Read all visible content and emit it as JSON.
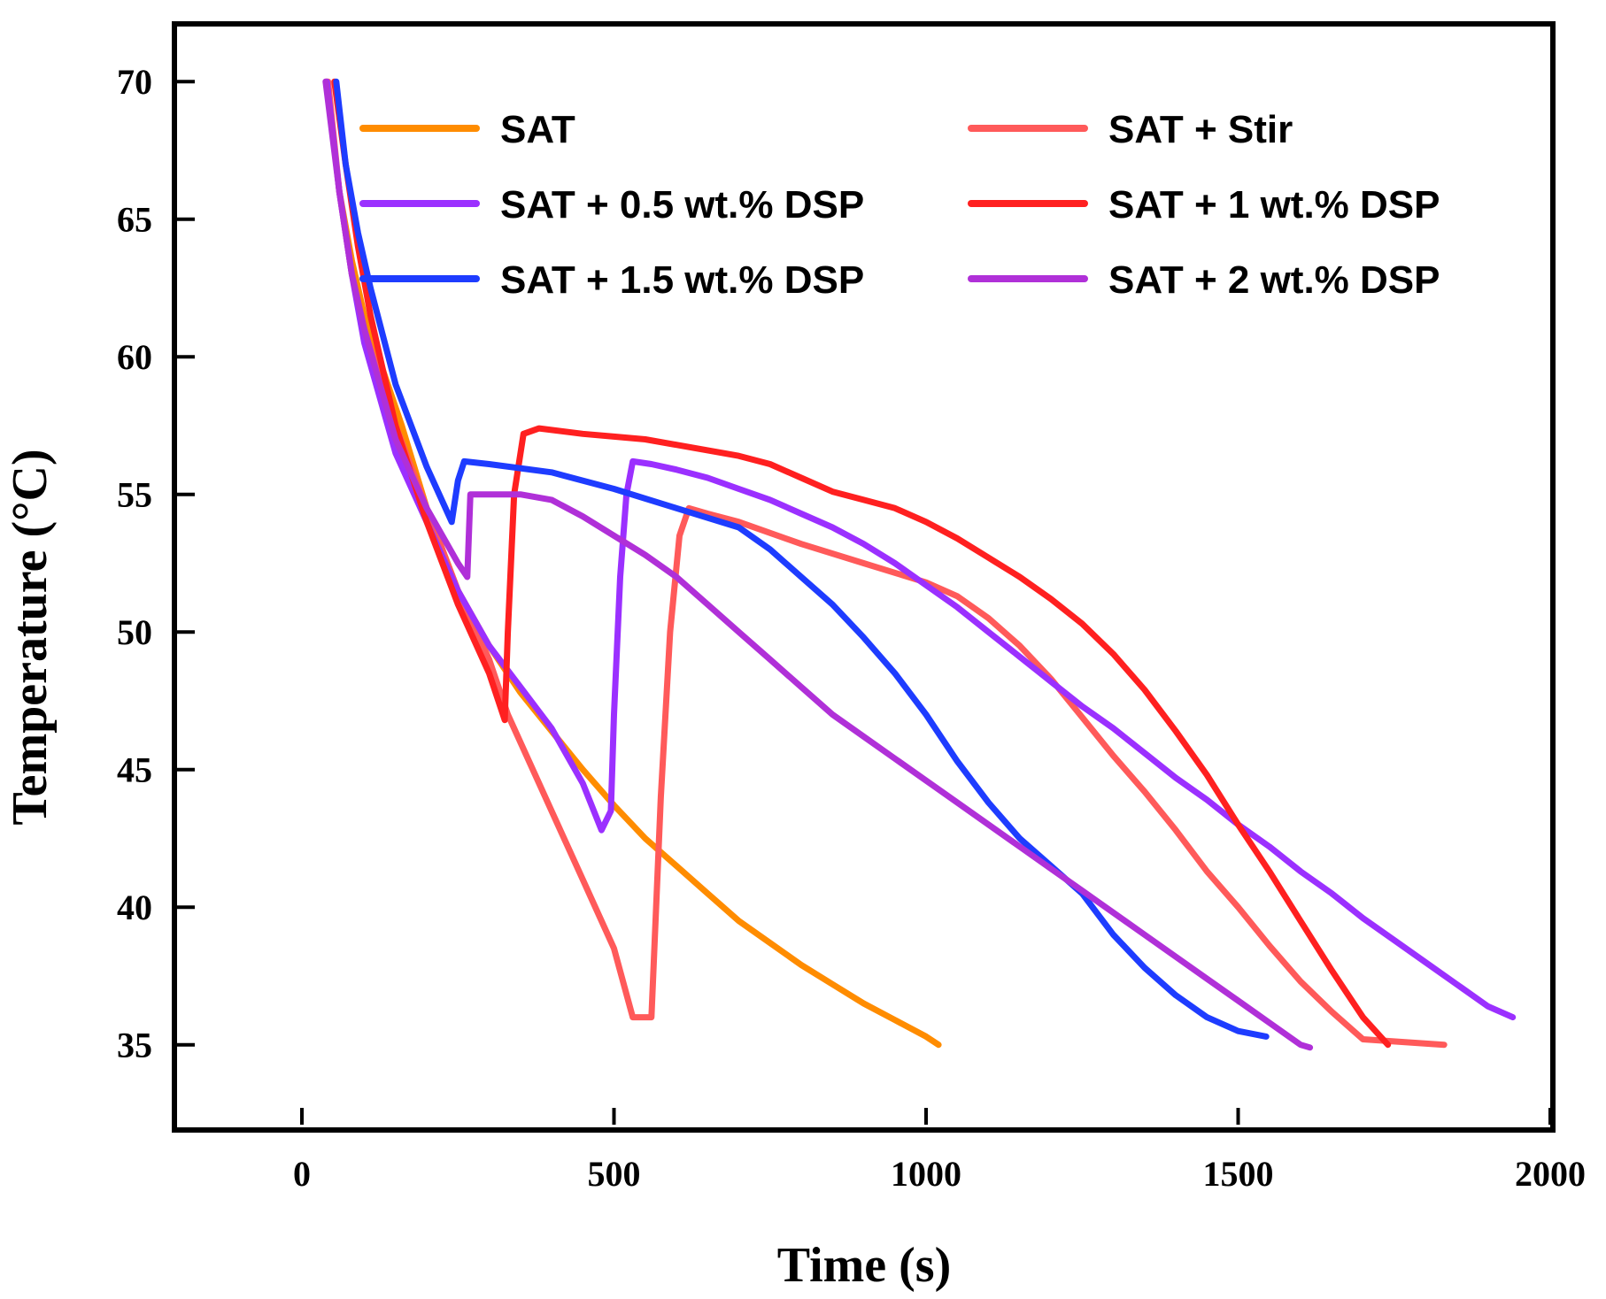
{
  "chart_data": {
    "type": "line",
    "title": "",
    "xlabel": "Time (s)",
    "ylabel": "Temperature (°C)",
    "xlim": [
      -200,
      2000
    ],
    "ylim": [
      32,
      72
    ],
    "xticks": [
      0,
      500,
      1000,
      1500,
      2000
    ],
    "yticks": [
      35,
      40,
      45,
      50,
      55,
      60,
      65,
      70
    ],
    "grid": false,
    "legend_position": "top",
    "series": [
      {
        "name": "SAT",
        "color": "#ff8c00",
        "points": [
          [
            40,
            70
          ],
          [
            60,
            66
          ],
          [
            80,
            63.5
          ],
          [
            100,
            61.5
          ],
          [
            130,
            59.5
          ],
          [
            160,
            57.5
          ],
          [
            200,
            54.5
          ],
          [
            250,
            51.5
          ],
          [
            300,
            49.5
          ],
          [
            350,
            47.8
          ],
          [
            400,
            46.4
          ],
          [
            450,
            45
          ],
          [
            500,
            43.7
          ],
          [
            550,
            42.5
          ],
          [
            600,
            41.5
          ],
          [
            650,
            40.5
          ],
          [
            700,
            39.5
          ],
          [
            750,
            38.7
          ],
          [
            800,
            37.9
          ],
          [
            850,
            37.2
          ],
          [
            900,
            36.5
          ],
          [
            950,
            35.9
          ],
          [
            1000,
            35.3
          ],
          [
            1020,
            35
          ]
        ]
      },
      {
        "name": "SAT + Stir",
        "color": "#ff5a5a",
        "points": [
          [
            42,
            70
          ],
          [
            60,
            66
          ],
          [
            80,
            63
          ],
          [
            100,
            61
          ],
          [
            150,
            57.5
          ],
          [
            200,
            54.5
          ],
          [
            250,
            51.5
          ],
          [
            300,
            49
          ],
          [
            330,
            47
          ],
          [
            400,
            43.5
          ],
          [
            450,
            41
          ],
          [
            500,
            38.5
          ],
          [
            530,
            36
          ],
          [
            560,
            36
          ],
          [
            575,
            44
          ],
          [
            590,
            50
          ],
          [
            605,
            53.5
          ],
          [
            620,
            54.5
          ],
          [
            650,
            54.3
          ],
          [
            700,
            54
          ],
          [
            800,
            53.2
          ],
          [
            900,
            52.5
          ],
          [
            1000,
            51.8
          ],
          [
            1050,
            51.3
          ],
          [
            1100,
            50.5
          ],
          [
            1150,
            49.5
          ],
          [
            1200,
            48.3
          ],
          [
            1250,
            46.9
          ],
          [
            1300,
            45.5
          ],
          [
            1350,
            44.2
          ],
          [
            1400,
            42.8
          ],
          [
            1450,
            41.3
          ],
          [
            1500,
            40
          ],
          [
            1550,
            38.6
          ],
          [
            1600,
            37.3
          ],
          [
            1650,
            36.2
          ],
          [
            1700,
            35.2
          ],
          [
            1830,
            35
          ]
        ]
      },
      {
        "name": "SAT + 0.5 wt.% DSP",
        "color": "#9b30ff",
        "points": [
          [
            40,
            70
          ],
          [
            60,
            66
          ],
          [
            80,
            63
          ],
          [
            100,
            60.5
          ],
          [
            150,
            56.5
          ],
          [
            200,
            54
          ],
          [
            250,
            51.5
          ],
          [
            300,
            49.5
          ],
          [
            350,
            48
          ],
          [
            400,
            46.5
          ],
          [
            450,
            44.5
          ],
          [
            480,
            42.8
          ],
          [
            495,
            43.5
          ],
          [
            500,
            47
          ],
          [
            510,
            52
          ],
          [
            520,
            55
          ],
          [
            530,
            56.2
          ],
          [
            560,
            56.1
          ],
          [
            600,
            55.9
          ],
          [
            650,
            55.6
          ],
          [
            700,
            55.2
          ],
          [
            750,
            54.8
          ],
          [
            800,
            54.3
          ],
          [
            850,
            53.8
          ],
          [
            900,
            53.2
          ],
          [
            950,
            52.5
          ],
          [
            1000,
            51.7
          ],
          [
            1050,
            50.9
          ],
          [
            1100,
            50
          ],
          [
            1150,
            49.1
          ],
          [
            1200,
            48.2
          ],
          [
            1250,
            47.3
          ],
          [
            1300,
            46.5
          ],
          [
            1350,
            45.6
          ],
          [
            1400,
            44.7
          ],
          [
            1450,
            43.9
          ],
          [
            1500,
            43
          ],
          [
            1550,
            42.2
          ],
          [
            1600,
            41.3
          ],
          [
            1650,
            40.5
          ],
          [
            1700,
            39.6
          ],
          [
            1750,
            38.8
          ],
          [
            1800,
            38
          ],
          [
            1850,
            37.2
          ],
          [
            1900,
            36.4
          ],
          [
            1940,
            36
          ]
        ]
      },
      {
        "name": "SAT + 1 wt.% DSP",
        "color": "#ff2020",
        "points": [
          [
            52,
            70
          ],
          [
            70,
            67
          ],
          [
            90,
            64
          ],
          [
            110,
            61.5
          ],
          [
            150,
            57.5
          ],
          [
            200,
            54
          ],
          [
            250,
            51
          ],
          [
            300,
            48.5
          ],
          [
            325,
            46.8
          ],
          [
            330,
            50
          ],
          [
            340,
            55
          ],
          [
            355,
            57.2
          ],
          [
            380,
            57.4
          ],
          [
            450,
            57.2
          ],
          [
            500,
            57.1
          ],
          [
            550,
            57
          ],
          [
            600,
            56.8
          ],
          [
            650,
            56.6
          ],
          [
            700,
            56.4
          ],
          [
            750,
            56.1
          ],
          [
            800,
            55.6
          ],
          [
            850,
            55.1
          ],
          [
            900,
            54.8
          ],
          [
            950,
            54.5
          ],
          [
            1000,
            54
          ],
          [
            1050,
            53.4
          ],
          [
            1100,
            52.7
          ],
          [
            1150,
            52
          ],
          [
            1200,
            51.2
          ],
          [
            1250,
            50.3
          ],
          [
            1300,
            49.2
          ],
          [
            1350,
            47.9
          ],
          [
            1400,
            46.4
          ],
          [
            1450,
            44.8
          ],
          [
            1500,
            43
          ],
          [
            1550,
            41.3
          ],
          [
            1600,
            39.5
          ],
          [
            1650,
            37.7
          ],
          [
            1700,
            36
          ],
          [
            1740,
            35
          ]
        ]
      },
      {
        "name": "SAT + 1.5 wt.% DSP",
        "color": "#1e3cff",
        "points": [
          [
            55,
            70
          ],
          [
            70,
            67
          ],
          [
            90,
            64.5
          ],
          [
            110,
            62.5
          ],
          [
            150,
            59
          ],
          [
            200,
            56
          ],
          [
            240,
            54
          ],
          [
            250,
            55.5
          ],
          [
            260,
            56.2
          ],
          [
            300,
            56.1
          ],
          [
            400,
            55.8
          ],
          [
            500,
            55.2
          ],
          [
            600,
            54.5
          ],
          [
            700,
            53.8
          ],
          [
            750,
            53
          ],
          [
            800,
            52
          ],
          [
            850,
            51
          ],
          [
            900,
            49.8
          ],
          [
            950,
            48.5
          ],
          [
            1000,
            47
          ],
          [
            1050,
            45.3
          ],
          [
            1100,
            43.8
          ],
          [
            1150,
            42.5
          ],
          [
            1200,
            41.5
          ],
          [
            1250,
            40.5
          ],
          [
            1300,
            39
          ],
          [
            1350,
            37.8
          ],
          [
            1400,
            36.8
          ],
          [
            1450,
            36
          ],
          [
            1500,
            35.5
          ],
          [
            1545,
            35.3
          ]
        ]
      },
      {
        "name": "SAT + 2 wt.% DSP",
        "color": "#b030d8",
        "points": [
          [
            38,
            70
          ],
          [
            60,
            66
          ],
          [
            80,
            63
          ],
          [
            100,
            61
          ],
          [
            150,
            57
          ],
          [
            200,
            54.5
          ],
          [
            250,
            52.5
          ],
          [
            265,
            52
          ],
          [
            270,
            55
          ],
          [
            300,
            55
          ],
          [
            350,
            55
          ],
          [
            400,
            54.8
          ],
          [
            450,
            54.2
          ],
          [
            500,
            53.5
          ],
          [
            550,
            52.8
          ],
          [
            600,
            52
          ],
          [
            650,
            51
          ],
          [
            700,
            50
          ],
          [
            750,
            49
          ],
          [
            800,
            48
          ],
          [
            850,
            47
          ],
          [
            900,
            46.2
          ],
          [
            950,
            45.4
          ],
          [
            1000,
            44.6
          ],
          [
            1050,
            43.8
          ],
          [
            1100,
            43
          ],
          [
            1150,
            42.2
          ],
          [
            1200,
            41.4
          ],
          [
            1250,
            40.6
          ],
          [
            1300,
            39.8
          ],
          [
            1350,
            39
          ],
          [
            1400,
            38.2
          ],
          [
            1450,
            37.4
          ],
          [
            1500,
            36.6
          ],
          [
            1550,
            35.8
          ],
          [
            1600,
            35
          ],
          [
            1615,
            34.9
          ]
        ]
      }
    ]
  }
}
